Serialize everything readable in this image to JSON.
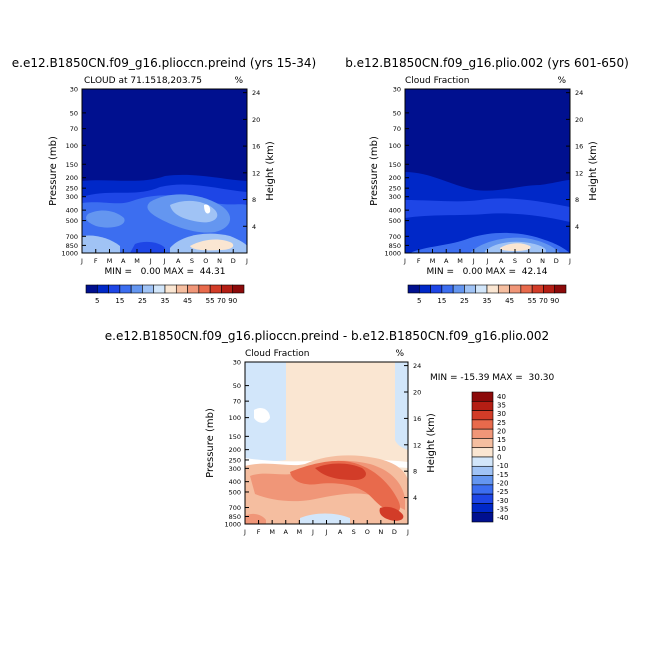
{
  "chart_data": [
    {
      "type": "heatmap",
      "id": "p1",
      "title": "e.e12.B1850CN.f09_g16.plioccn.preind (yrs 15-34)",
      "subtitle": "CLOUD at 71.1518,203.75",
      "units_label": "%",
      "xlabel": "",
      "ylabel": "Pressure (mb)",
      "ylabel_right": "Height (km)",
      "x_ticks": [
        "J",
        "F",
        "M",
        "A",
        "M",
        "J",
        "J",
        "A",
        "S",
        "O",
        "N",
        "D",
        "J"
      ],
      "y_ticks": [
        "30",
        "50",
        "70",
        "100",
        "150",
        "200",
        "250",
        "300",
        "400",
        "500",
        "700",
        "850",
        "1000"
      ],
      "y_ticks_right": [
        "24",
        "20",
        "16",
        "12",
        "8",
        "4"
      ],
      "stats": "MIN =   0.00 MAX =  44.31",
      "stats_min": 0.0,
      "stats_max": 44.31,
      "colorbar_ticks": [
        "5",
        "15",
        "25",
        "35",
        "45",
        "55",
        "70",
        "90"
      ]
    },
    {
      "type": "heatmap",
      "id": "p2",
      "title": "b.e12.B1850CN.f09_g16.plio.002 (yrs 601-650)",
      "subtitle": "Cloud Fraction",
      "units_label": "%",
      "xlabel": "",
      "ylabel": "Pressure (mb)",
      "ylabel_right": "Height (km)",
      "x_ticks": [
        "J",
        "F",
        "M",
        "A",
        "M",
        "J",
        "J",
        "A",
        "S",
        "O",
        "N",
        "D",
        "J"
      ],
      "y_ticks": [
        "30",
        "50",
        "70",
        "100",
        "150",
        "200",
        "250",
        "300",
        "400",
        "500",
        "700",
        "850",
        "1000"
      ],
      "y_ticks_right": [
        "24",
        "20",
        "16",
        "12",
        "8",
        "4"
      ],
      "stats": "MIN =   0.00 MAX =  42.14",
      "stats_min": 0.0,
      "stats_max": 42.14,
      "colorbar_ticks": [
        "5",
        "15",
        "25",
        "35",
        "45",
        "55",
        "70",
        "90"
      ]
    },
    {
      "type": "heatmap",
      "id": "diff",
      "title": "e.e12.B1850CN.f09_g16.plioccn.preind - b.e12.B1850CN.f09_g16.plio.002",
      "subtitle": "Cloud Fraction",
      "units_label": "%",
      "xlabel": "",
      "ylabel": "Pressure (mb)",
      "ylabel_right": "Height (km)",
      "x_ticks": [
        "J",
        "F",
        "M",
        "A",
        "M",
        "J",
        "J",
        "A",
        "S",
        "O",
        "N",
        "D",
        "J"
      ],
      "y_ticks": [
        "30",
        "50",
        "70",
        "100",
        "150",
        "200",
        "250",
        "300",
        "400",
        "500",
        "700",
        "850",
        "1000"
      ],
      "y_ticks_right": [
        "24",
        "20",
        "16",
        "12",
        "8",
        "4"
      ],
      "stats": "MIN = -15.39 MAX =  30.30",
      "stats_min": -15.39,
      "stats_max": 30.3,
      "colorbar_ticks": [
        "40",
        "35",
        "30",
        "25",
        "20",
        "15",
        "10",
        "0",
        "-10",
        "-15",
        "-20",
        "-25",
        "-30",
        "-35",
        "-40"
      ]
    }
  ],
  "palettes": {
    "abs": [
      "#00108f",
      "#0028c8",
      "#1e46e6",
      "#3c6ef0",
      "#6496f0",
      "#a0c3f5",
      "#d2e6fa",
      "#fae6d2",
      "#f5bea0",
      "#f09678",
      "#e86a4c",
      "#d23c28",
      "#b41e14",
      "#8c0a0a"
    ],
    "diff": [
      "#8c0a0a",
      "#b41e14",
      "#d23c28",
      "#e86a4c",
      "#f09678",
      "#f5bea0",
      "#fae6d2",
      "#d2e6fa",
      "#a0c3f5",
      "#6496f0",
      "#3c6ef0",
      "#1e46e6",
      "#0028c8",
      "#00108f"
    ]
  }
}
